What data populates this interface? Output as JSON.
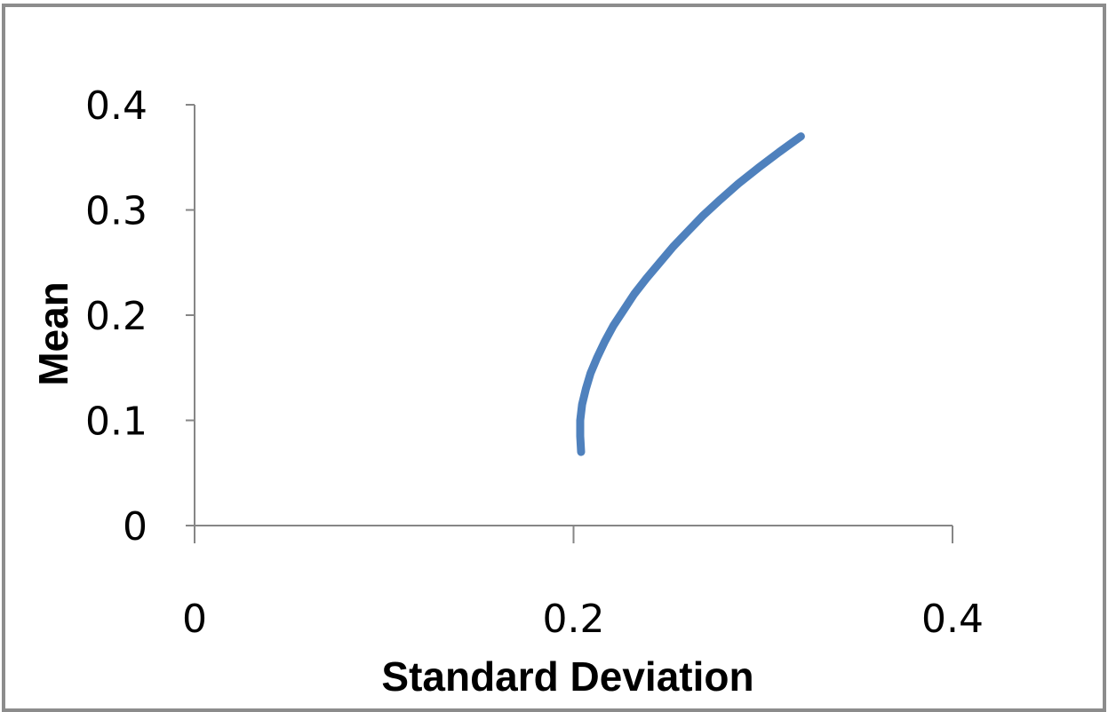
{
  "chart_data": {
    "type": "line",
    "title": "",
    "xlabel": "Standard Deviation",
    "ylabel": "Mean",
    "xlim": [
      0,
      0.4
    ],
    "ylim": [
      0,
      0.4
    ],
    "x_ticks": [
      "0",
      "0.2",
      "0.4"
    ],
    "y_ticks": [
      "0",
      "0.1",
      "0.2",
      "0.3",
      "0.4"
    ],
    "grid": false,
    "legend": "none",
    "series": [
      {
        "color": "#4f81bd",
        "points": [
          {
            "x": 0.204,
            "y": 0.07
          },
          {
            "x": 0.2035,
            "y": 0.085
          },
          {
            "x": 0.2035,
            "y": 0.1
          },
          {
            "x": 0.2045,
            "y": 0.115
          },
          {
            "x": 0.2065,
            "y": 0.13
          },
          {
            "x": 0.209,
            "y": 0.145
          },
          {
            "x": 0.2125,
            "y": 0.16
          },
          {
            "x": 0.2165,
            "y": 0.175
          },
          {
            "x": 0.221,
            "y": 0.19
          },
          {
            "x": 0.2265,
            "y": 0.205
          },
          {
            "x": 0.232,
            "y": 0.22
          },
          {
            "x": 0.2385,
            "y": 0.235
          },
          {
            "x": 0.2455,
            "y": 0.25
          },
          {
            "x": 0.2525,
            "y": 0.265
          },
          {
            "x": 0.2605,
            "y": 0.28
          },
          {
            "x": 0.2685,
            "y": 0.295
          },
          {
            "x": 0.2775,
            "y": 0.31
          },
          {
            "x": 0.287,
            "y": 0.325
          },
          {
            "x": 0.2975,
            "y": 0.34
          },
          {
            "x": 0.3085,
            "y": 0.355
          },
          {
            "x": 0.32,
            "y": 0.37
          }
        ]
      }
    ]
  }
}
